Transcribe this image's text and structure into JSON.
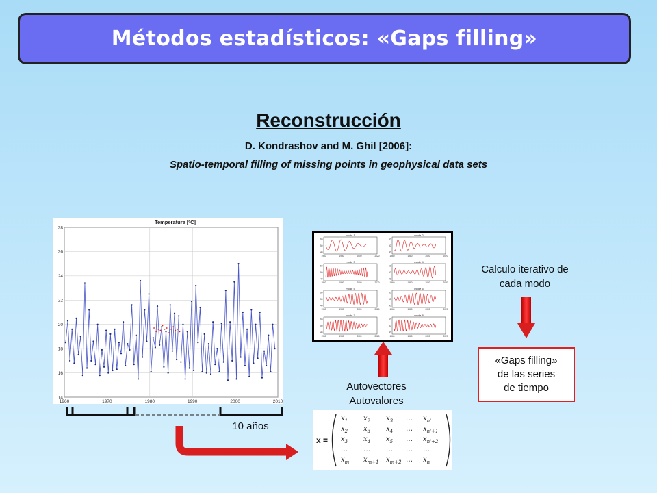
{
  "header": {
    "title": "Métodos estadísticos: «Gaps filling»"
  },
  "section": {
    "heading": "Reconstrucción",
    "authors": "D. Kondrashov and M. Ghil [2006]:",
    "paper_title": "Spatio-temporal filling of missing points in geophysical data sets"
  },
  "chart_data": {
    "type": "line",
    "title": "Temperature [ºC]",
    "x_ticks": [
      "1960",
      "1970",
      "1980",
      "1990",
      "2000",
      "2010"
    ],
    "y_ticks": [
      "14",
      "16",
      "18",
      "20",
      "22",
      "24",
      "26",
      "28"
    ],
    "xlim": [
      1960,
      2010
    ],
    "ylim": [
      14,
      28
    ],
    "grid": true,
    "x": [
      1960.3,
      1960.8,
      1961.3,
      1961.8,
      1962.3,
      1962.8,
      1963.3,
      1963.8,
      1964.3,
      1964.8,
      1965.3,
      1965.8,
      1966.3,
      1966.8,
      1967.3,
      1967.8,
      1968.3,
      1968.8,
      1969.3,
      1969.8,
      1970.3,
      1970.8,
      1971.3,
      1971.8,
      1972.3,
      1972.8,
      1973.3,
      1973.8,
      1974.3,
      1974.8,
      1975.3,
      1975.8,
      1976.3,
      1976.8,
      1977.3,
      1977.8,
      1978.3,
      1978.8,
      1979.3,
      1979.8,
      1980.3,
      1980.8,
      1981.3,
      1981.8,
      1982.3,
      1982.8,
      1983.3,
      1983.8,
      1984.3,
      1984.8,
      1985.3,
      1985.8,
      1986.3,
      1986.8,
      1987.3,
      1987.8,
      1988.3,
      1988.8,
      1989.3,
      1989.8,
      1990.3,
      1990.8,
      1991.3,
      1991.8,
      1992.3,
      1992.8,
      1993.3,
      1993.8,
      1994.3,
      1994.8,
      1995.3,
      1995.8,
      1996.3,
      1996.8,
      1997.3,
      1997.8,
      1998.3,
      1998.8,
      1999.3,
      1999.8,
      2000.3,
      2000.8,
      2001.3,
      2001.8,
      2002.3,
      2002.8,
      2003.3,
      2003.8,
      2004.3,
      2004.8,
      2005.3,
      2005.8,
      2006.3,
      2006.8,
      2007.3,
      2007.8,
      2008.3,
      2008.8,
      2009.3
    ],
    "y": [
      18.5,
      20.3,
      17.0,
      19.6,
      16.8,
      20.5,
      17.5,
      19.0,
      15.8,
      23.4,
      16.4,
      21.2,
      17.0,
      18.6,
      16.7,
      20.0,
      15.8,
      17.9,
      16.5,
      19.5,
      16.0,
      19.2,
      16.2,
      19.6,
      16.3,
      18.5,
      17.6,
      20.2,
      16.6,
      18.4,
      17.9,
      21.6,
      16.7,
      19.1,
      15.5,
      23.6,
      17.3,
      21.2,
      18.6,
      22.5,
      16.1,
      18.9,
      18.1,
      21.5,
      18.3,
      19.8,
      16.5,
      19.4,
      16.0,
      21.6,
      17.8,
      20.9,
      17.1,
      20.7,
      16.9,
      20.0,
      15.5,
      19.4,
      16.4,
      21.9,
      16.2,
      23.2,
      18.5,
      21.4,
      16.1,
      19.2,
      16.0,
      18.4,
      15.9,
      20.2,
      16.7,
      18.0,
      16.1,
      20.1,
      16.9,
      22.8,
      15.4,
      20.2,
      17.0,
      23.5,
      15.5,
      25.0,
      17.3,
      21.0,
      16.6,
      19.6,
      15.7,
      21.2,
      16.8,
      20.0,
      17.2,
      21.0,
      15.6,
      17.8,
      16.6,
      19.1,
      16.1,
      20.0,
      18.0
    ],
    "gap_x": [
      1981.0,
      1981.5,
      1982.0,
      1982.5,
      1983.0,
      1983.5,
      1984.0,
      1984.5,
      1985.0,
      1985.5,
      1986.0,
      1986.5,
      1987.0
    ],
    "gap_y": [
      19.7,
      19.4,
      19.6,
      19.5,
      19.9,
      19.6,
      19.7,
      19.3,
      19.6,
      19.8,
      19.5,
      19.6,
      19.4
    ],
    "colors": {
      "series": "#4a57c8",
      "points": "#1a2a8a",
      "gap": "#e02020"
    }
  },
  "modes_chart": {
    "x_ticks": [
      "1960",
      "1980",
      "2000",
      "2020"
    ],
    "y_ticks": [
      "60",
      "50",
      "40"
    ],
    "modes": [
      "mode 1",
      "mode 2",
      "mode 3",
      "mode 4",
      "mode 5",
      "mode 6",
      "mode 7",
      "mode 8"
    ]
  },
  "matrix": {
    "label": "x =",
    "rows": [
      [
        {
          "b": "x",
          "s": "1"
        },
        {
          "b": "x",
          "s": "2"
        },
        {
          "b": "x",
          "s": "3"
        },
        {
          "b": "…",
          "s": ""
        },
        {
          "b": "x",
          "s": "n'"
        }
      ],
      [
        {
          "b": "x",
          "s": "2"
        },
        {
          "b": "x",
          "s": "3"
        },
        {
          "b": "x",
          "s": "4"
        },
        {
          "b": "…",
          "s": ""
        },
        {
          "b": "x",
          "s": "n'+1"
        }
      ],
      [
        {
          "b": "x",
          "s": "3"
        },
        {
          "b": "x",
          "s": "4"
        },
        {
          "b": "x",
          "s": "5"
        },
        {
          "b": "…",
          "s": ""
        },
        {
          "b": "x",
          "s": "n'+2"
        }
      ],
      [
        {
          "b": "…",
          "s": ""
        },
        {
          "b": "…",
          "s": ""
        },
        {
          "b": "…",
          "s": ""
        },
        {
          "b": "…",
          "s": ""
        },
        {
          "b": "…",
          "s": ""
        }
      ],
      [
        {
          "b": "x",
          "s": "m"
        },
        {
          "b": "x",
          "s": "m+1"
        },
        {
          "b": "x",
          "s": "m+2"
        },
        {
          "b": "…",
          "s": ""
        },
        {
          "b": "x",
          "s": "n"
        }
      ]
    ]
  },
  "labels": {
    "window": "10 años",
    "eigen_line1": "Autovectores",
    "eigen_line2": "Autovalores",
    "iter_line1": "Calculo iterativo de",
    "iter_line2": "cada modo",
    "gaps_line1": "«Gaps filling»",
    "gaps_line2": "de las series",
    "gaps_line3": "de tiempo"
  },
  "colors": {
    "title_bar": "#6a6cf2",
    "arrow": "#e02020",
    "box_border": "#e02020"
  }
}
